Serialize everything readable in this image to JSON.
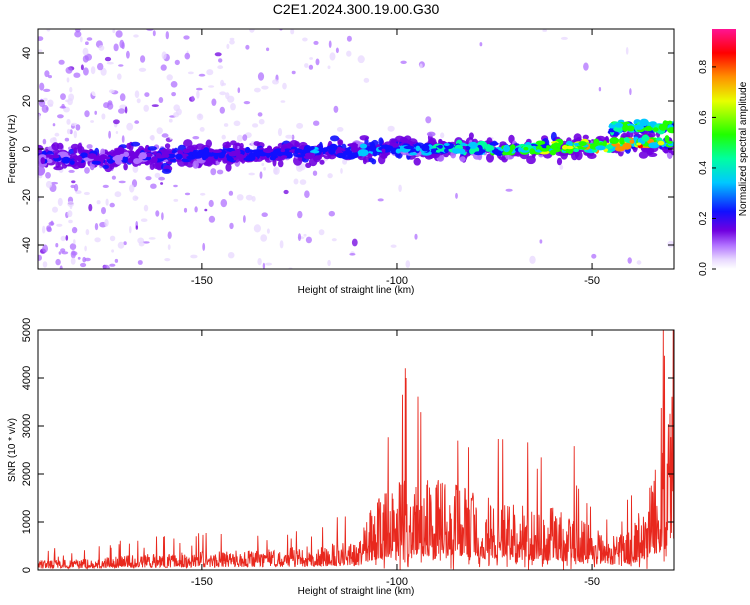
{
  "figure_title": "C2E1.2024.300.19.00.G30",
  "chart_data": [
    {
      "type": "heatmap",
      "title": "",
      "xlabel": "Height of straight line (km)",
      "ylabel": "Frequency (Hz)",
      "xlim": [
        -192,
        -29
      ],
      "ylim": [
        -50,
        50
      ],
      "xticks": [
        -150,
        -100,
        -50
      ],
      "yticks": [
        40,
        20,
        0,
        -20,
        -40
      ],
      "colorbar": {
        "label": "Normalized spectral amplitude",
        "range": [
          0.0,
          0.95
        ],
        "ticks": [
          0.0,
          0.2,
          0.4,
          0.6,
          0.8
        ],
        "colormap": [
          "#ffffff",
          "#cc99ff",
          "#7b00e0",
          "#0000ff",
          "#00ffff",
          "#00ff00",
          "#ffff00",
          "#ff8000",
          "#ff0000",
          "#ff1493"
        ]
      },
      "ridge": {
        "description_points_x": [
          -192,
          -150,
          -100,
          -70,
          -50,
          -40,
          -29
        ],
        "center_frequency_hz": [
          -4,
          -3,
          0,
          0,
          1,
          3,
          3
        ],
        "peak_normalized_amplitude": [
          0.25,
          0.3,
          0.4,
          0.55,
          0.8,
          0.85,
          0.8
        ]
      },
      "grid": false
    },
    {
      "type": "line",
      "title": "",
      "xlabel": "Height of straight line (km)",
      "ylabel": "SNR (10 * v/v)",
      "xlim": [
        -192,
        -29
      ],
      "ylim": [
        0,
        5000
      ],
      "xticks": [
        -150,
        -100,
        -50
      ],
      "yticks": [
        0,
        1000,
        2000,
        3000,
        4000,
        5000
      ],
      "series": [
        {
          "color": "#e8281e",
          "envelope_x": [
            -192,
            -180,
            -170,
            -160,
            -150,
            -140,
            -130,
            -120,
            -110,
            -106,
            -100,
            -95,
            -90,
            -85,
            -80,
            -75,
            -70,
            -65,
            -60,
            -55,
            -50,
            -45,
            -40,
            -35,
            -31,
            -30
          ],
          "envelope_y": [
            200,
            230,
            300,
            350,
            380,
            420,
            450,
            520,
            600,
            1400,
            1800,
            2100,
            1900,
            2000,
            1700,
            1500,
            1400,
            1300,
            1300,
            1200,
            900,
            700,
            800,
            1800,
            2900,
            4200
          ]
        }
      ],
      "grid": false
    }
  ]
}
